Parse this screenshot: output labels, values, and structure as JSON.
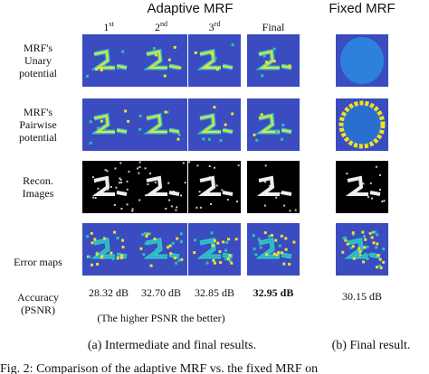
{
  "header": {
    "adaptive": "Adaptive MRF",
    "fixed": "Fixed MRF"
  },
  "columns": [
    {
      "base": "1",
      "sup": "st"
    },
    {
      "base": "2",
      "sup": "nd"
    },
    {
      "base": "3",
      "sup": "rd"
    },
    {
      "base": "Final"
    }
  ],
  "rows": [
    [
      "MRF's",
      "Unary",
      "potential"
    ],
    [
      "MRF's",
      "Pairwise",
      "potential"
    ],
    [
      "Recon.",
      "Images"
    ],
    [
      "Error maps"
    ],
    [
      "Accuracy",
      "(PSNR)"
    ]
  ],
  "accuracy": [
    "28.32 dB",
    "32.70 dB",
    "32.85 dB",
    "32.95 dB",
    "30.15 dB"
  ],
  "note": "(The higher PSNR the better)",
  "subcaptions": [
    "(a) Intermediate and final results.",
    "(b) Final result."
  ],
  "caption": "Fig. 2: Comparison of the adaptive MRF vs. the fixed MRF on"
}
